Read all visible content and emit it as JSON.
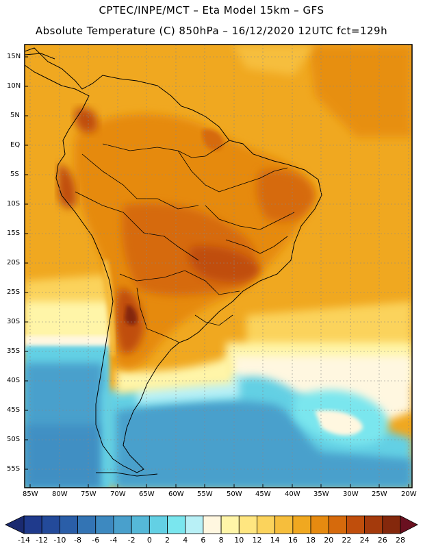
{
  "title": "CPTEC/INPE/MCT –  Eta Model 15km – GFS",
  "subtitle": "Absolute Temperature (C) 850hPa – 16/12/2020 12UTC fct=129h",
  "latitude_labels": [
    "15N",
    "10N",
    "5N",
    "EQ",
    "5S",
    "10S",
    "15S",
    "20S",
    "25S",
    "30S",
    "35S",
    "40S",
    "45S",
    "50S",
    "55S"
  ],
  "longitude_labels": [
    "85W",
    "80W",
    "75W",
    "70W",
    "65W",
    "60W",
    "55W",
    "50W",
    "45W",
    "40W",
    "35W",
    "30W",
    "25W",
    "20W"
  ],
  "colorbar": {
    "labels": [
      "-14",
      "-12",
      "-10",
      "-8",
      "-6",
      "-4",
      "-2",
      "0",
      "2",
      "4",
      "6",
      "8",
      "10",
      "12",
      "14",
      "16",
      "18",
      "20",
      "22",
      "24",
      "26",
      "28"
    ],
    "colors": [
      "#1f3a8c",
      "#234a9a",
      "#2a5ea8",
      "#3374b4",
      "#3d89c0",
      "#49a0cc",
      "#55b8d8",
      "#63d0e4",
      "#7ae6ee",
      "#b8f0f6",
      "#fff7e0",
      "#fff5a8",
      "#ffe680",
      "#fbd35c",
      "#f6be3c",
      "#f0a820",
      "#e68a10",
      "#d66a0c",
      "#c04e0c",
      "#a43a0c",
      "#84280c"
    ],
    "end_low": "#1a2a70",
    "end_high": "#6a1020"
  },
  "map": {
    "region": "South America",
    "lon_range": [
      -85,
      -20
    ],
    "lat_range": [
      -57.5,
      16.5
    ],
    "ocean_color": "#f0a820",
    "cold_colors": [
      "#49a0cc",
      "#63d0e4",
      "#fff7e0"
    ]
  }
}
